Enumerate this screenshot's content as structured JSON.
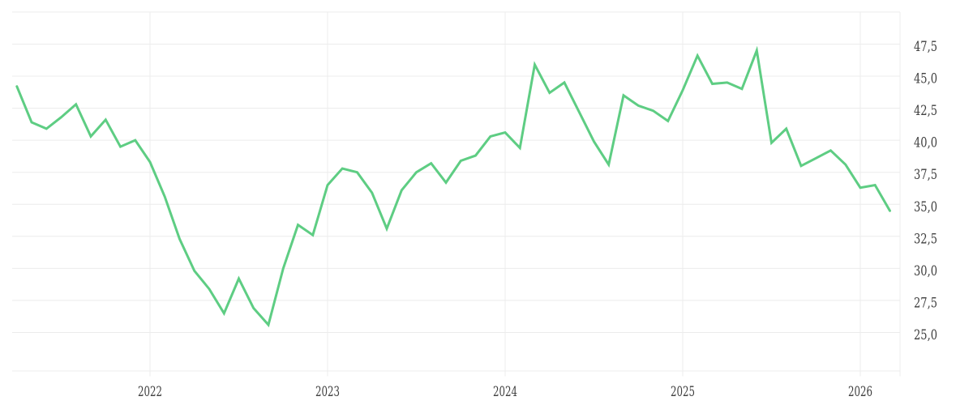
{
  "chart": {
    "background_color": "#ffffff",
    "line_color": "#5ecd83",
    "grid_color": "#ececec",
    "axis_color": "#ececec",
    "tick_label_color": "#3e3e3e"
  },
  "chart_data": {
    "type": "line",
    "title": "",
    "xlabel": "",
    "ylabel": "",
    "legend_position": "none",
    "grid": true,
    "decimal_separator": ",",
    "ylim": [
      22,
      50
    ],
    "xlim_years": [
      2021.25,
      2026.25
    ],
    "y_grid_values": [
      50,
      47.5,
      45,
      42.5,
      40,
      37.5,
      35,
      32.5,
      30,
      27.5,
      25
    ],
    "y_ticks": [
      {
        "value": 47.5,
        "label": "47,5"
      },
      {
        "value": 45.0,
        "label": "45,0"
      },
      {
        "value": 42.5,
        "label": "42,5"
      },
      {
        "value": 40.0,
        "label": "40,0"
      },
      {
        "value": 37.5,
        "label": "37,5"
      },
      {
        "value": 35.0,
        "label": "35,0"
      },
      {
        "value": 32.5,
        "label": "32,5"
      },
      {
        "value": 30.0,
        "label": "30,0"
      },
      {
        "value": 27.5,
        "label": "27,5"
      },
      {
        "value": 25.0,
        "label": "25,0"
      }
    ],
    "x_ticks": [
      {
        "year": 2022,
        "label": "2022"
      },
      {
        "year": 2023,
        "label": "2023"
      },
      {
        "year": 2024,
        "label": "2024"
      },
      {
        "year": 2025,
        "label": "2025"
      },
      {
        "year": 2026,
        "label": "2026"
      }
    ],
    "series": [
      {
        "name": "value",
        "x": [
          "2021-04",
          "2021-05",
          "2021-06",
          "2021-07",
          "2021-08",
          "2021-09",
          "2021-10",
          "2021-11",
          "2021-12",
          "2022-01",
          "2022-02",
          "2022-03",
          "2022-04",
          "2022-05",
          "2022-06",
          "2022-07",
          "2022-08",
          "2022-09",
          "2022-10",
          "2022-11",
          "2022-12",
          "2023-01",
          "2023-02",
          "2023-03",
          "2023-04",
          "2023-05",
          "2023-06",
          "2023-07",
          "2023-08",
          "2023-09",
          "2023-10",
          "2023-11",
          "2023-12",
          "2024-01",
          "2024-02",
          "2024-03",
          "2024-04",
          "2024-05",
          "2024-06",
          "2024-07",
          "2024-08",
          "2024-09",
          "2024-10",
          "2024-11",
          "2024-12",
          "2025-01",
          "2025-02",
          "2025-03",
          "2025-04",
          "2025-05",
          "2025-06",
          "2025-07",
          "2025-08",
          "2025-09",
          "2025-10",
          "2025-11",
          "2025-12",
          "2026-01",
          "2026-02",
          "2026-03"
        ],
        "values": [
          44.2,
          41.4,
          40.9,
          41.8,
          42.8,
          40.3,
          41.6,
          39.5,
          40.0,
          38.3,
          35.6,
          32.3,
          29.8,
          28.4,
          26.5,
          29.2,
          26.9,
          25.6,
          30.0,
          33.4,
          32.6,
          36.5,
          37.8,
          37.5,
          35.9,
          33.1,
          36.1,
          37.5,
          38.2,
          36.7,
          38.4,
          38.8,
          40.3,
          40.6,
          39.4,
          45.9,
          43.7,
          44.5,
          42.2,
          39.9,
          38.1,
          43.5,
          42.7,
          42.3,
          41.5,
          43.9,
          46.6,
          44.4,
          44.5,
          44.0,
          47.0,
          39.8,
          40.9,
          38.0,
          38.6,
          39.2,
          38.1,
          36.3,
          36.5,
          34.5
        ]
      }
    ]
  }
}
